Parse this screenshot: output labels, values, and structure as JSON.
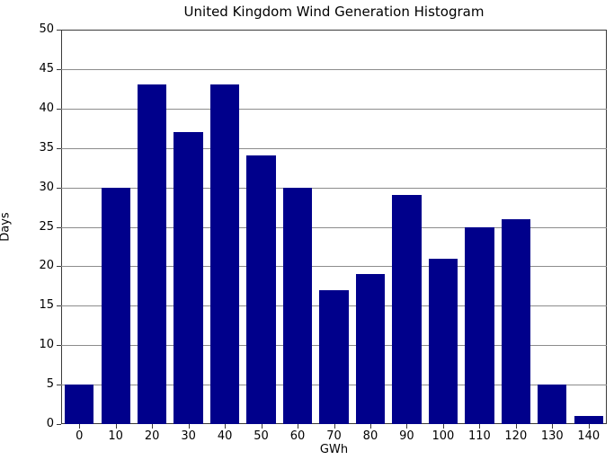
{
  "chart_data": {
    "type": "bar",
    "title": "United Kingdom Wind Generation Histogram",
    "xlabel": "GWh",
    "ylabel": "Days",
    "categories": [
      0,
      10,
      20,
      30,
      40,
      50,
      60,
      70,
      80,
      90,
      100,
      110,
      120,
      130,
      140
    ],
    "values": [
      5,
      30,
      43,
      37,
      43,
      34,
      30,
      17,
      19,
      29,
      21,
      25,
      26,
      5,
      1
    ],
    "ylim": [
      0,
      50
    ],
    "yticks": [
      0,
      5,
      10,
      15,
      20,
      25,
      30,
      35,
      40,
      45,
      50
    ],
    "grid": true,
    "legend": "none",
    "bar_color": "#00008B",
    "grid_color": "#8c8c8c",
    "frame_color": "#3a3a3a",
    "text_color": "#000000"
  }
}
